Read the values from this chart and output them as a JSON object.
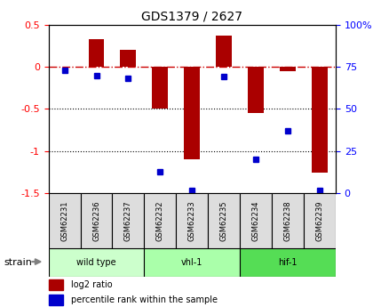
{
  "title": "GDS1379 / 2627",
  "samples": [
    "GSM62231",
    "GSM62236",
    "GSM62237",
    "GSM62232",
    "GSM62233",
    "GSM62235",
    "GSM62234",
    "GSM62238",
    "GSM62239"
  ],
  "log2_ratio": [
    0.0,
    0.33,
    0.2,
    -0.5,
    -1.1,
    0.37,
    -0.55,
    -0.05,
    -1.25
  ],
  "percentile_rank": [
    73,
    70,
    68,
    13,
    2,
    69,
    20,
    37,
    2
  ],
  "groups": [
    {
      "label": "wild type",
      "start": 0,
      "end": 3,
      "color": "#ccffcc"
    },
    {
      "label": "vhl-1",
      "start": 3,
      "end": 6,
      "color": "#aaffaa"
    },
    {
      "label": "hif-1",
      "start": 6,
      "end": 9,
      "color": "#55dd55"
    }
  ],
  "ylim_left": [
    -1.5,
    0.5
  ],
  "ylim_right": [
    0,
    100
  ],
  "bar_color": "#aa0000",
  "dot_color": "#0000cc",
  "hline_color": "#cc0000",
  "grid_color": "#000000",
  "bg_color": "#ffffff",
  "strain_label": "strain",
  "yticks_left": [
    0.5,
    0.0,
    -0.5,
    -1.0,
    -1.5
  ],
  "ytick_left_labels": [
    "0.5",
    "0",
    "-0.5",
    "-1",
    "-1.5"
  ],
  "yticks_right": [
    0,
    25,
    50,
    75,
    100
  ],
  "ytick_right_labels": [
    "0",
    "25",
    "50",
    "75",
    "100%"
  ],
  "sample_box_color": "#dddddd",
  "legend_bar_label": "log2 ratio",
  "legend_dot_label": "percentile rank within the sample"
}
